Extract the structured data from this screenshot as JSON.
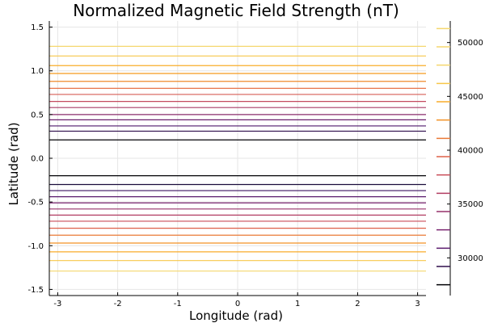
{
  "chart_data": {
    "type": "contour",
    "title": "Normalized Magnetic Field Strength (nT)",
    "xlabel": "Longitude (rad)",
    "ylabel": "Latitude (rad)",
    "xlim": [
      -3.14,
      3.14
    ],
    "ylim": [
      -1.57,
      1.57
    ],
    "xticks": [
      -3,
      -2,
      -1,
      0,
      1,
      2,
      3
    ],
    "yticks": [
      -1.5,
      -1.0,
      -0.5,
      0.0,
      0.5,
      1.0,
      1.5
    ],
    "grid": true,
    "colorbar": {
      "range": [
        26500,
        52000
      ],
      "ticks": [
        30000,
        35000,
        40000,
        45000,
        50000
      ],
      "levels": [
        27500,
        29200,
        30900,
        32600,
        34300,
        36000,
        37700,
        39400,
        41100,
        42800,
        44500,
        46200,
        47900,
        49600,
        51300
      ]
    },
    "contour_latitudes": [
      {
        "lat": 1.28,
        "color": "#f5d76e"
      },
      {
        "lat": 1.17,
        "color": "#f7c74a"
      },
      {
        "lat": 1.06,
        "color": "#f9ad2a"
      },
      {
        "lat": 0.97,
        "color": "#f59a1f"
      },
      {
        "lat": 0.88,
        "color": "#ef8a2c"
      },
      {
        "lat": 0.8,
        "color": "#e8744a"
      },
      {
        "lat": 0.73,
        "color": "#d65e56"
      },
      {
        "lat": 0.65,
        "color": "#c44a5f"
      },
      {
        "lat": 0.58,
        "color": "#a83a67"
      },
      {
        "lat": 0.5,
        "color": "#8b2d6d"
      },
      {
        "lat": 0.44,
        "color": "#6b216f"
      },
      {
        "lat": 0.37,
        "color": "#4d186b"
      },
      {
        "lat": 0.31,
        "color": "#2f0f4c"
      },
      {
        "lat": 0.21,
        "color": "#000004"
      },
      {
        "lat": -0.2,
        "color": "#000004"
      },
      {
        "lat": -0.3,
        "color": "#1a0c3b"
      },
      {
        "lat": -0.37,
        "color": "#3b1262"
      },
      {
        "lat": -0.44,
        "color": "#5a1a6e"
      },
      {
        "lat": -0.51,
        "color": "#7a2570"
      },
      {
        "lat": -0.58,
        "color": "#96316a"
      },
      {
        "lat": -0.65,
        "color": "#b23d62"
      },
      {
        "lat": -0.72,
        "color": "#c94c58"
      },
      {
        "lat": -0.8,
        "color": "#dd6049"
      },
      {
        "lat": -0.88,
        "color": "#ea7a36"
      },
      {
        "lat": -0.97,
        "color": "#f39124"
      },
      {
        "lat": -1.07,
        "color": "#f8ab2a"
      },
      {
        "lat": -1.17,
        "color": "#f7c74a"
      },
      {
        "lat": -1.29,
        "color": "#f5d76e"
      }
    ],
    "colorbar_colors": [
      "#000004",
      "#2f0f4c",
      "#5a1a6e",
      "#7a2570",
      "#96316a",
      "#b23d62",
      "#c94c58",
      "#dd6049",
      "#ea7a36",
      "#f39124",
      "#f8ab2a",
      "#f7c74a",
      "#f5d76e",
      "#f5d76e"
    ]
  }
}
